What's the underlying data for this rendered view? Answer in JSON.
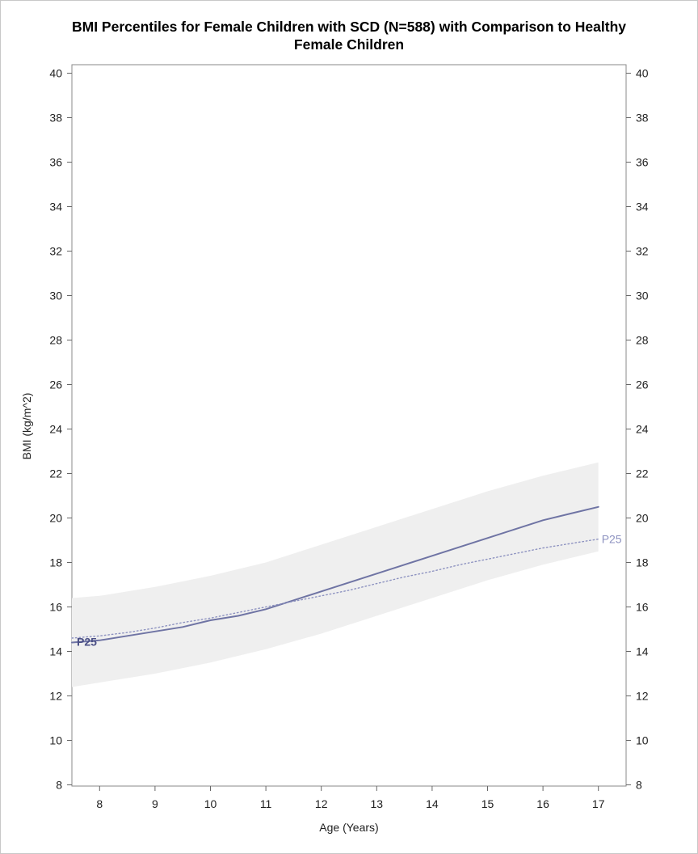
{
  "chart_data": {
    "type": "line",
    "title_line1": "BMI Percentiles for Female Children with SCD (N=588) with Comparison to Healthy",
    "title_line2": "Female Children",
    "xlabel": "Age (Years)",
    "ylabel": "BMI (kg/m^2)",
    "xlim": [
      7.5,
      17.5
    ],
    "ylim": [
      8,
      40
    ],
    "x_ticks": [
      8,
      9,
      10,
      11,
      12,
      13,
      14,
      15,
      16,
      17
    ],
    "y_ticks": [
      8,
      10,
      12,
      14,
      16,
      18,
      20,
      22,
      24,
      26,
      28,
      30,
      32,
      34,
      36,
      38,
      40
    ],
    "grid": false,
    "colors": {
      "scd_line": "#6f74a4",
      "healthy_line": "#8d92c0",
      "band": "#efefef",
      "scd_label": "#4a4f85",
      "healthy_label": "#8d92c0"
    },
    "band": {
      "x": [
        7.5,
        8,
        9,
        10,
        11,
        12,
        13,
        14,
        15,
        16,
        17
      ],
      "lower": [
        12.4,
        12.6,
        13.0,
        13.5,
        14.1,
        14.8,
        15.6,
        16.4,
        17.2,
        17.9,
        18.5
      ],
      "upper": [
        16.4,
        16.5,
        16.9,
        17.4,
        18.0,
        18.8,
        19.6,
        20.4,
        21.2,
        21.9,
        22.5
      ]
    },
    "series": [
      {
        "name": "P25",
        "style": "solid",
        "x": [
          7.5,
          8,
          8.5,
          9,
          9.5,
          10,
          10.5,
          11,
          11.5,
          12,
          12.5,
          13,
          13.5,
          14,
          14.5,
          15,
          15.5,
          16,
          16.5,
          17
        ],
        "values": [
          14.4,
          14.5,
          14.7,
          14.9,
          15.1,
          15.4,
          15.6,
          15.9,
          16.3,
          16.7,
          17.1,
          17.5,
          17.9,
          18.3,
          18.7,
          19.1,
          19.5,
          19.9,
          20.2,
          20.5
        ]
      },
      {
        "name": "P25",
        "style": "dotted",
        "x": [
          7.5,
          8,
          8.5,
          9,
          9.5,
          10,
          10.5,
          11,
          11.5,
          12,
          12.5,
          13,
          13.5,
          14,
          14.5,
          15,
          15.5,
          16,
          16.5,
          17
        ],
        "values": [
          14.6,
          14.7,
          14.85,
          15.05,
          15.3,
          15.5,
          15.75,
          16.0,
          16.25,
          16.5,
          16.75,
          17.05,
          17.35,
          17.6,
          17.9,
          18.15,
          18.4,
          18.65,
          18.85,
          19.05
        ]
      }
    ],
    "labels": {
      "scd": "P25",
      "healthy": "P25"
    }
  }
}
